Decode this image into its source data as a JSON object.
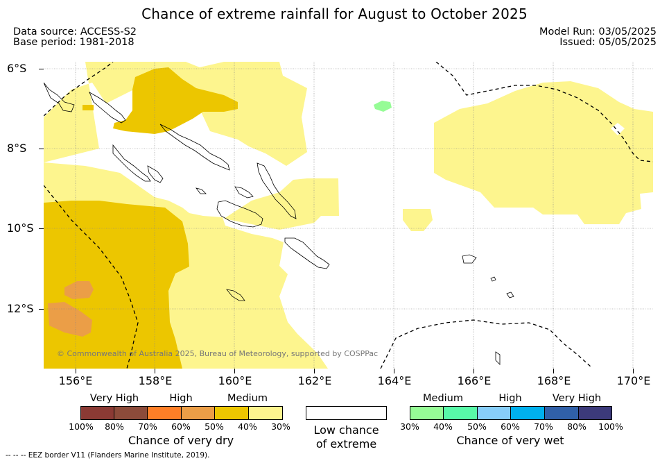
{
  "title": "Chance of extreme rainfall for August to October 2025",
  "meta": {
    "data_source": "Data source: ACCESS-S2",
    "base_period": "Base period: 1981-2018",
    "model_run": "Model Run: 03/05/2025",
    "issued": "Issued: 05/05/2025"
  },
  "map": {
    "lat_labels": [
      "6°S",
      "8°S",
      "10°S",
      "12°S"
    ],
    "lon_labels": [
      "156°E",
      "158°E",
      "160°E",
      "162°E",
      "164°E",
      "166°E",
      "168°E",
      "170°E"
    ],
    "copyright": "© Commonwealth of Australia 2025, Bureau of Meteorology, supported by COSPPac",
    "footnote": "--  --  -- EEZ border V11 (Flanders Marine Institute, 2019).",
    "colors": {
      "dry_medium_low": "#fdf58e",
      "dry_medium_high": "#ecc600",
      "dry_high_low": "#eb9e47",
      "wet_medium_low": "#96fc96",
      "land_outline": "#000000",
      "eez_border": "#000000",
      "gridline": "#888888"
    }
  },
  "legend": {
    "dry": {
      "headers": [
        "Very High",
        "High",
        "Medium"
      ],
      "ticks": [
        "100%",
        "80%",
        "70%",
        "60%",
        "50%",
        "40%",
        "30%"
      ],
      "label": "Chance of very dry",
      "colors": [
        "#8b3a34",
        "#8c4b3a",
        "#ff7f27",
        "#eb9e47",
        "#ecc600",
        "#fdf58e"
      ]
    },
    "neutral": {
      "label_line1": "Low chance",
      "label_line2": "of extreme"
    },
    "wet": {
      "headers": [
        "Medium",
        "High",
        "Very High"
      ],
      "ticks": [
        "30%",
        "40%",
        "50%",
        "60%",
        "70%",
        "80%",
        "100%"
      ],
      "label": "Chance of very wet",
      "colors": [
        "#96fc96",
        "#58f9a8",
        "#87cef9",
        "#00b0ed",
        "#3060a8",
        "#3c3a7a"
      ]
    }
  }
}
